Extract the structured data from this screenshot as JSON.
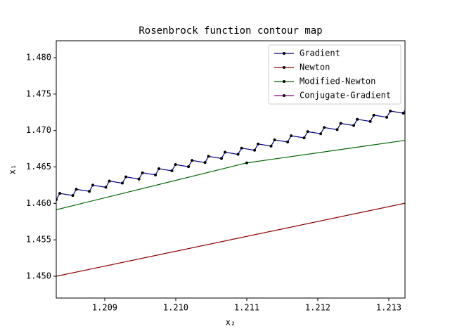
{
  "chart_data": {
    "type": "line",
    "title": "Rosenbrock function contour map",
    "x_label": "x₂",
    "y_label": "x₁",
    "xlim": [
      1.208317,
      1.213228
    ],
    "ylim": [
      1.44701,
      1.48232
    ],
    "xticks": [
      1.209,
      {
        "value": 1.21,
        "label": "1.210"
      },
      1.211,
      1.212,
      1.213
    ],
    "yticks": [
      {
        "value": 1.45,
        "label": "1.450"
      },
      1.455,
      {
        "value": 1.46,
        "label": "1.460"
      },
      1.465,
      {
        "value": 1.47,
        "label": "1.470"
      },
      1.475,
      {
        "value": 1.48,
        "label": "1.480"
      }
    ],
    "legend": "upper right",
    "series": [
      {
        "name": "Gradient",
        "color": "#00008b",
        "x": [
          1.208317,
          1.208367,
          1.20855,
          1.2086,
          1.208783,
          1.208832,
          1.209015,
          1.209065,
          1.209248,
          1.209298,
          1.209481,
          1.209531,
          1.209714,
          1.209763,
          1.209946,
          1.209996,
          1.210179,
          1.210229,
          1.210412,
          1.210461,
          1.210644,
          1.210694,
          1.210877,
          1.210927,
          1.21111,
          1.211159,
          1.211342,
          1.211392,
          1.211575,
          1.211625,
          1.211808,
          1.211858,
          1.212041,
          1.21209,
          1.212273,
          1.212323,
          1.212506,
          1.212556,
          1.212739,
          1.212788,
          1.212971,
          1.213021,
          1.213204,
          1.213254
        ],
        "values": [
          1.460519,
          1.461374,
          1.461084,
          1.461939,
          1.461649,
          1.462504,
          1.462214,
          1.463069,
          1.462779,
          1.463634,
          1.463344,
          1.464199,
          1.463909,
          1.464764,
          1.464474,
          1.465329,
          1.465039,
          1.465894,
          1.465604,
          1.466459,
          1.466169,
          1.467024,
          1.466734,
          1.467589,
          1.467299,
          1.468154,
          1.467864,
          1.468719,
          1.468429,
          1.469284,
          1.468994,
          1.469849,
          1.469559,
          1.470414,
          1.470124,
          1.470979,
          1.470689,
          1.471544,
          1.471254,
          1.472109,
          1.471819,
          1.472674,
          1.472384,
          1.473239
        ]
      },
      {
        "name": "Newton",
        "color": "#8b0000",
        "x": [
          1.208,
          1.214
        ],
        "values": [
          1.44935,
          1.4616
        ]
      },
      {
        "name": "Modified-Newton",
        "color": "#006400",
        "x": [
          1.208,
          1.211,
          1.214
        ],
        "values": [
          1.45837,
          1.46556,
          1.46972
        ]
      },
      {
        "name": "Conjugate-Gradient",
        "color": "#8b008b",
        "x": [],
        "values": []
      }
    ]
  }
}
